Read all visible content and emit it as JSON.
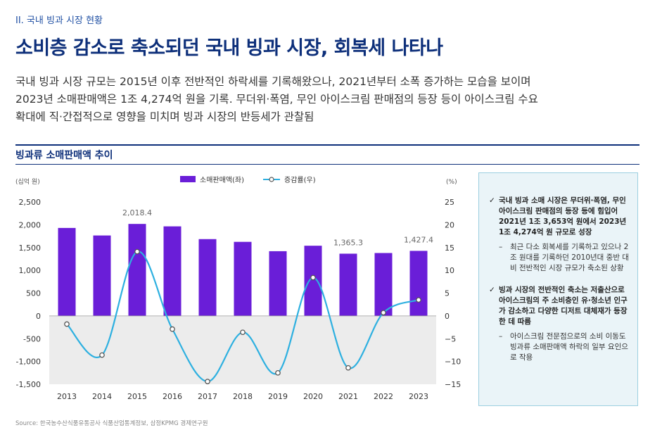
{
  "header": {
    "section": "II. 국내 빙과 시장 현황",
    "title": "소비층 감소로 축소되던 국내 빙과 시장, 회복세 나타나"
  },
  "summary_lines": [
    "국내 빙과 시장 규모는 2015년 이후 전반적인 하락세를 기록해왔으나, 2021년부터 소폭 증가하는 모습을 보이며",
    "2023년 소매판매액은 1조 4,274억 원을 기록. 무더위·폭염, 무인 아이스크림 판매점의 등장 등이 아이스크림 수요",
    "확대에 직·간접적으로 영향을 미치며 빙과 시장의 반등세가 관찰됨"
  ],
  "chart_heading": "빙과류 소매판매액 추이",
  "colors": {
    "bar": "#6a1ed8",
    "line": "#2eb0e0",
    "title": "#0d2f7a"
  },
  "chart_data": {
    "type": "bar",
    "title": "빙과류 소매판매액 추이",
    "categories": [
      "2013",
      "2014",
      "2015",
      "2016",
      "2017",
      "2018",
      "2019",
      "2020",
      "2021",
      "2022",
      "2023"
    ],
    "series": [
      {
        "name": "소매판매액(좌)",
        "type": "bar",
        "axis": "left",
        "values": [
          1930,
          1765,
          2018.4,
          1965,
          1685,
          1625,
          1420,
          1540,
          1365.3,
          1380,
          1427.4
        ]
      },
      {
        "name": "증감률(우)",
        "type": "line",
        "smooth": true,
        "axis": "right",
        "values": [
          -1.8,
          -8.6,
          14.1,
          -2.9,
          -14.4,
          -3.6,
          -12.5,
          8.4,
          -11.4,
          0.7,
          3.5
        ]
      }
    ],
    "data_labels": [
      {
        "index": 2,
        "text": "2,018.4"
      },
      {
        "index": 8,
        "text": "1,365.3"
      },
      {
        "index": 10,
        "text": "1,427.4"
      }
    ],
    "y_left": {
      "label": "(십억 원)",
      "ylim": [
        -1500,
        2500
      ],
      "ticks": [
        2500,
        2000,
        1500,
        1000,
        500,
        0,
        -500,
        -1000,
        -1500
      ],
      "tick_labels": [
        "2,500",
        "2,000",
        "1,500",
        "1,000",
        "500",
        "0",
        "-500",
        "-1,000",
        "-1,500"
      ]
    },
    "y_right": {
      "label": "(%)",
      "ylim": [
        -15,
        25
      ],
      "ticks": [
        25,
        20,
        15,
        10,
        5,
        0,
        -5,
        -10,
        -15
      ],
      "tick_labels": [
        "25",
        "20",
        "15",
        "10",
        "5",
        "0",
        "−5",
        "−10",
        "−15"
      ]
    },
    "legend": {
      "position": "top-center",
      "items": [
        "소매판매액(좌)",
        "증감률(우)"
      ]
    }
  },
  "notes": [
    {
      "main": "국내 빙과 소매 시장은 무더위·폭염, 무인 아이스크림 판매점의 등장 등에 힘입어 2021년 1조 3,653억 원에서 2023년 1조 4,274억 원 규모로 성장",
      "sub": "최근 다소 회복세를 기록하고 있으나 2조 원대를 기록하던 2010년대 중반 대비 전반적인 시장 규모가 축소된 상황"
    },
    {
      "main": "빙과 시장의 전반적인 축소는 저출산으로 아이스크림의 주 소비층인 유·청소년 인구가 감소하고 다양한 디저트 대체재가 등장한 데 따름",
      "sub": "아이스크림 전문점으로의 소비 이동도 빙과류 소매판매액 하락의 일부 요인으로 작용"
    }
  ],
  "source": "Source: 한국농수산식품유통공사 식품산업통계정보, 삼정KPMG 경제연구원"
}
